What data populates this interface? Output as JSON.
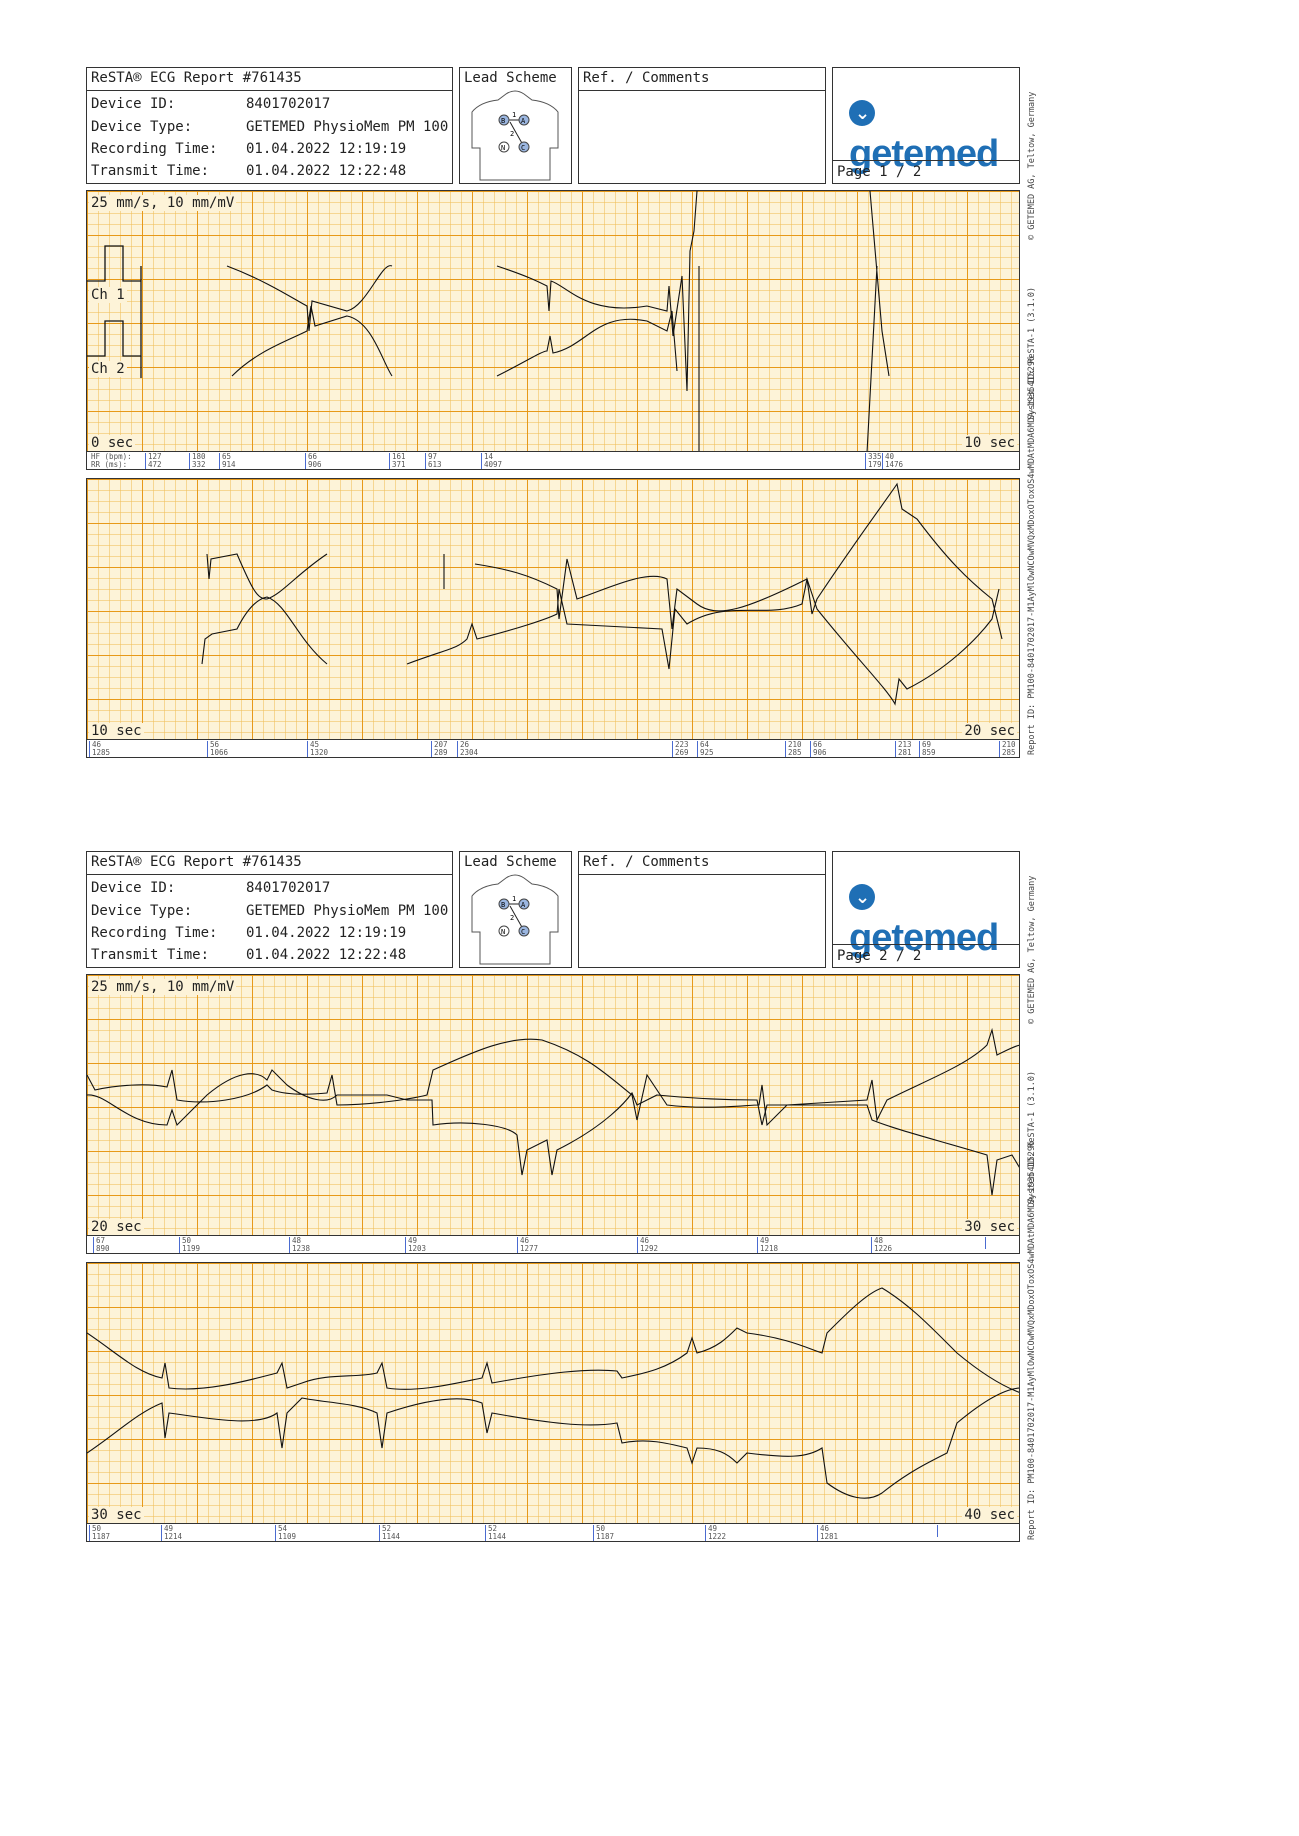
{
  "header": {
    "title": "ReSTA® ECG Report #761435",
    "lead_scheme_label": "Lead Scheme",
    "ref_label": "Ref. / Comments",
    "rows": [
      {
        "label": "Device ID:",
        "value": "8401702017"
      },
      {
        "label": "Device Type:",
        "value": "GETEMED PhysioMem PM 100"
      },
      {
        "label": "Recording Time:",
        "value": "01.04.2022 12:19:19"
      },
      {
        "label": "Transmit Time:",
        "value": "01.04.2022 12:22:48"
      }
    ],
    "logo_text": "getemed",
    "logo_color": "#1f6fb5"
  },
  "lead_scheme": {
    "electrodes": [
      "B",
      "A",
      "N",
      "C"
    ],
    "leads": [
      "1",
      "2"
    ]
  },
  "pages": [
    {
      "page_label": "Page 1 / 2"
    },
    {
      "page_label": "Page 2 / 2"
    }
  ],
  "strip_info": {
    "speed_label": "25 mm/s, 10 mm/mV",
    "ch1_label": "Ch 1",
    "ch2_label": "Ch 2",
    "hf_label": "HF (bpm):",
    "rr_label": "RR (ms):"
  },
  "strips": [
    {
      "start": "0 sec",
      "end": "10 sec",
      "rr": [
        [
          "127",
          "472"
        ],
        [
          "180",
          "332"
        ],
        [
          "65",
          "914"
        ],
        [
          "66",
          "906"
        ],
        [
          "161",
          "371"
        ],
        [
          "97",
          "613"
        ],
        [
          "14",
          "4097"
        ],
        [
          "335",
          "179"
        ],
        [
          "40",
          "1476"
        ]
      ]
    },
    {
      "start": "10 sec",
      "end": "20 sec",
      "rr": [
        [
          "46",
          "1285"
        ],
        [
          "56",
          "1066"
        ],
        [
          "45",
          "1320"
        ],
        [
          "207",
          "289"
        ],
        [
          "26",
          "2304"
        ],
        [
          "223",
          "269"
        ],
        [
          "64",
          "925"
        ],
        [
          "210",
          "285"
        ],
        [
          "66",
          "906"
        ],
        [
          "213",
          "281"
        ],
        [
          "69",
          "859"
        ],
        [
          "210",
          "285"
        ]
      ]
    },
    {
      "start": "20 sec",
      "end": "30 sec",
      "rr": [
        [
          "67",
          "890"
        ],
        [
          "50",
          "1199"
        ],
        [
          "48",
          "1238"
        ],
        [
          "49",
          "1203"
        ],
        [
          "46",
          "1277"
        ],
        [
          "46",
          "1292"
        ],
        [
          "49",
          "1218"
        ],
        [
          "48",
          "1226"
        ]
      ]
    },
    {
      "start": "30 sec",
      "end": "40 sec",
      "rr": [
        [
          "50",
          "1187"
        ],
        [
          "49",
          "1214"
        ],
        [
          "54",
          "1109"
        ],
        [
          "52",
          "1144"
        ],
        [
          "52",
          "1144"
        ],
        [
          "50",
          "1187"
        ],
        [
          "49",
          "1222"
        ],
        [
          "46",
          "1281"
        ]
      ]
    }
  ],
  "side_texts": {
    "company": "© GETEMED AG, Teltow, Germany",
    "system": "System ID: ReSTA-1 (3.1.0)",
    "report": "Report ID: PM100-8401702017-M1AyMlOwNCOwMVQxMDoxOToxOS4wMDAtMDA6MDA-1935415296"
  },
  "colors": {
    "grid_major": "#e6961a",
    "grid_minor": "#f0be5a",
    "paper": "#fdf3d8",
    "trace": "#111111",
    "rr_marker": "#4a6bd0"
  }
}
